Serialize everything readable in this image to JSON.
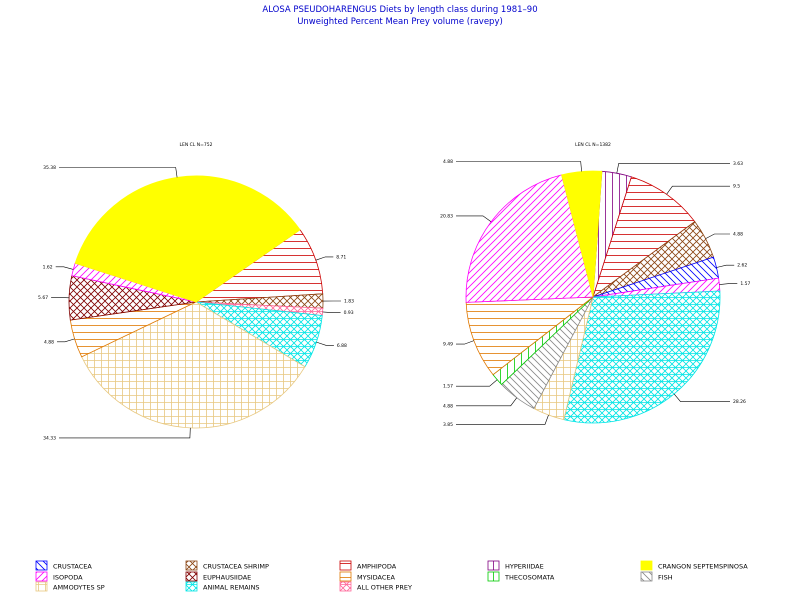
{
  "title": "ALOSA PSEUDOHARENGUS Diets by length class during 1981–90",
  "subtitle": "Unweighted Percent Mean Prey volume (ravepy)",
  "legend": [
    {
      "key": "crustacea",
      "label": "CRUSTACEA",
      "color": "#0000ff",
      "pattern": "diag-rev"
    },
    {
      "key": "crustacea_shrimp",
      "label": "CRUSTACEA SHRIMP",
      "color": "#8b4513",
      "pattern": "cross"
    },
    {
      "key": "amphipoda",
      "label": "AMPHIPODA",
      "color": "#cc0000",
      "pattern": "horiz"
    },
    {
      "key": "hyperiidae",
      "label": "HYPERIIDAE",
      "color": "#800080",
      "pattern": "vert"
    },
    {
      "key": "crangon",
      "label": "CRANGON SEPTEMSPINOSA",
      "color": "#ffff00",
      "pattern": "solid"
    },
    {
      "key": "isopoda",
      "label": "ISOPODA",
      "color": "#ff00ff",
      "pattern": "diag"
    },
    {
      "key": "euphausiidae",
      "label": "EUPHAUSIIDAE",
      "color": "#800000",
      "pattern": "cross"
    },
    {
      "key": "mysidacea",
      "label": "MYSIDACEA",
      "color": "#e07800",
      "pattern": "horiz"
    },
    {
      "key": "thecosomata",
      "label": "THECOSOMATA",
      "color": "#00cc00",
      "pattern": "vert"
    },
    {
      "key": "fish",
      "label": "FISH",
      "color": "#888888",
      "pattern": "diag-rev"
    },
    {
      "key": "ammodytes",
      "label": "AMMODYTES SP",
      "color": "#e8c880",
      "pattern": "grid"
    },
    {
      "key": "animal_remains",
      "label": "ANIMAL REMAINS",
      "color": "#00e5e5",
      "pattern": "grid-diag"
    },
    {
      "key": "all_other",
      "label": "ALL OTHER PREY",
      "color": "#ff6699",
      "pattern": "grid-diag"
    }
  ],
  "chart_data": [
    {
      "type": "pie",
      "title": "LEN CL N=752",
      "slices": [
        {
          "key": "amphipoda",
          "value": 8.71
        },
        {
          "key": "crustacea_shrimp",
          "value": 1.83
        },
        {
          "key": "all_other",
          "value": 0.93
        },
        {
          "key": "animal_remains",
          "value": 6.88
        },
        {
          "key": "ammodytes",
          "value": 34.33
        },
        {
          "key": "mysidacea",
          "value": 4.88
        },
        {
          "key": "euphausiidae",
          "value": 5.67
        },
        {
          "key": "isopoda",
          "value": 1.62
        },
        {
          "key": "crangon",
          "value": 35.38
        }
      ],
      "labels": [
        "8.71",
        "1.83",
        "0.93",
        "6.88",
        "34.33",
        "4.88",
        "5.67",
        "1.62",
        "35.38"
      ]
    },
    {
      "type": "pie",
      "title": "LEN CL N=1382",
      "slices": [
        {
          "key": "hyperiidae",
          "value": 3.63
        },
        {
          "key": "amphipoda",
          "value": 9.5
        },
        {
          "key": "crustacea_shrimp",
          "value": 4.88
        },
        {
          "key": "crustacea",
          "value": 2.62
        },
        {
          "key": "isopoda",
          "value": 1.57
        },
        {
          "key": "animal_remains",
          "value": 28.26
        },
        {
          "key": "ammodytes",
          "value": 3.85
        },
        {
          "key": "fish",
          "value": 4.88
        },
        {
          "key": "thecosomata",
          "value": 1.57
        },
        {
          "key": "mysidacea",
          "value": 9.49
        },
        {
          "key": "isopoda",
          "value": 20.83
        },
        {
          "key": "crangon",
          "value": 4.88
        }
      ],
      "labels": [
        "3.63",
        "9.5",
        "4.88",
        "2.62",
        "1.57",
        "28.26",
        "3.85",
        "4.88",
        "1.57",
        "9.49",
        "20.83",
        "4.88"
      ]
    }
  ]
}
